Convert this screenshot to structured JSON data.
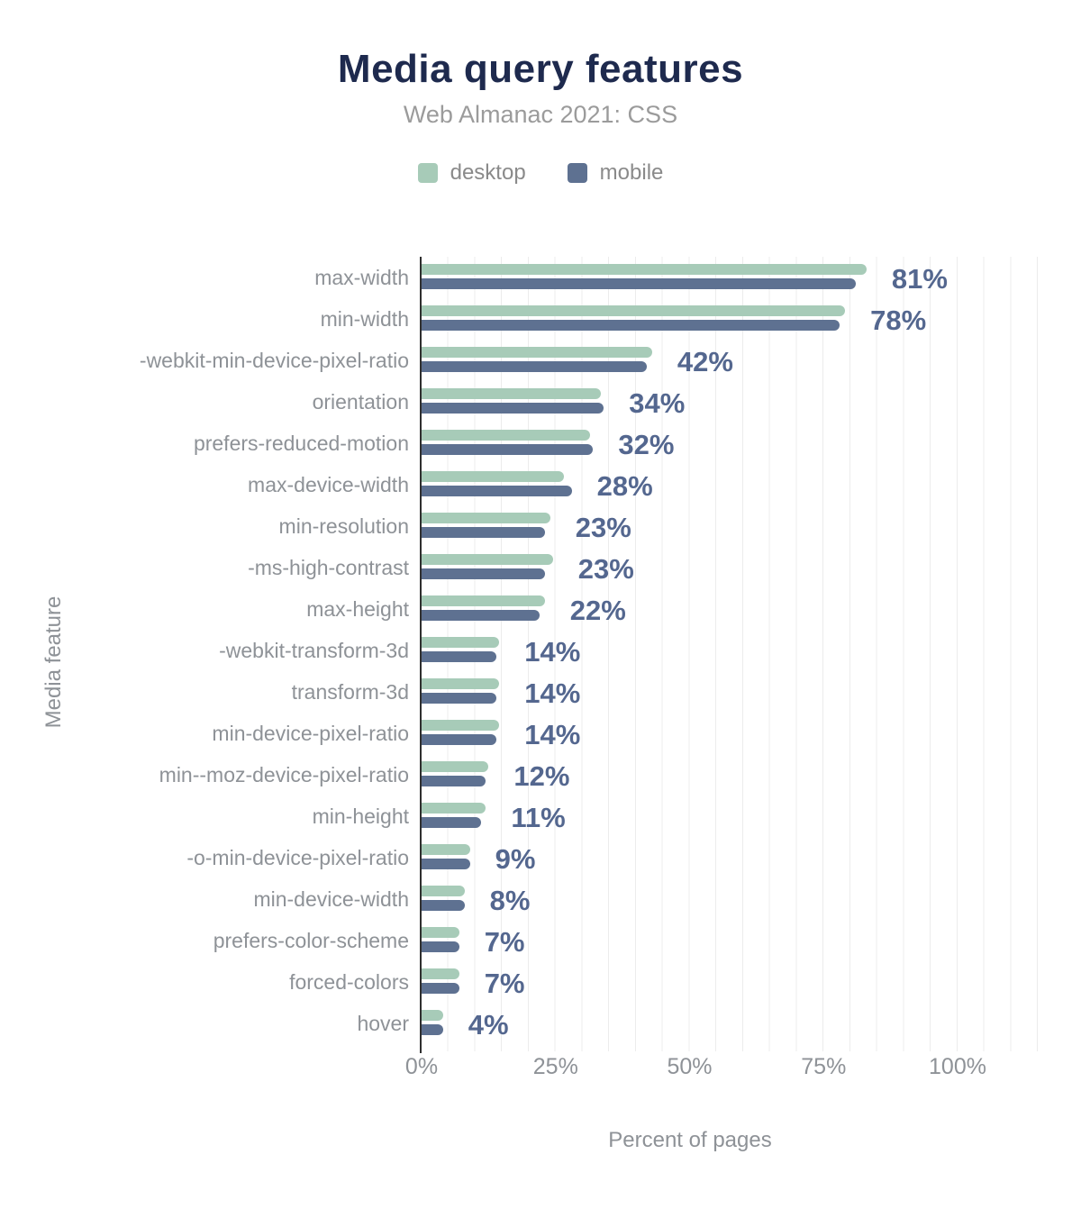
{
  "header": {
    "title": "Media query features",
    "subtitle": "Web Almanac 2021: CSS"
  },
  "legend": {
    "items": [
      {
        "label": "desktop",
        "color": "#a7cbb8"
      },
      {
        "label": "mobile",
        "color": "#5e7191"
      }
    ]
  },
  "colors": {
    "title": "#1e2a4e",
    "subtitle_gray": "#9b9b9b",
    "axis_text_gray": "#8e9297",
    "value_label": "#54678f",
    "axis_line": "#2f2f2f",
    "gridline": "#ececec"
  },
  "chart_data": {
    "type": "bar",
    "orientation": "horizontal",
    "title": "Media query features",
    "subtitle": "Web Almanac 2021: CSS",
    "xlabel": "Percent of pages",
    "ylabel": "Media feature",
    "xlim": [
      0,
      100
    ],
    "xticks": [
      "0%",
      "25%",
      "50%",
      "75%",
      "100%"
    ],
    "grid": "vertical gridlines every 5%",
    "legend_position": "top",
    "categories": [
      "max-width",
      "min-width",
      "-webkit-min-device-pixel-ratio",
      "orientation",
      "prefers-reduced-motion",
      "max-device-width",
      "min-resolution",
      "-ms-high-contrast",
      "max-height",
      "-webkit-transform-3d",
      "transform-3d",
      "min-device-pixel-ratio",
      "min--moz-device-pixel-ratio",
      "min-height",
      "-o-min-device-pixel-ratio",
      "min-device-width",
      "prefers-color-scheme",
      "forced-colors",
      "hover"
    ],
    "series": [
      {
        "name": "desktop",
        "color": "#a7cbb8",
        "values": [
          83,
          79,
          43,
          33.5,
          31.5,
          26.5,
          24,
          24.5,
          23,
          14.5,
          14.5,
          14.5,
          12.5,
          12,
          9,
          8,
          7,
          7,
          4
        ]
      },
      {
        "name": "mobile",
        "color": "#5e7191",
        "values": [
          81,
          78,
          42,
          34,
          32,
          28,
          23,
          23,
          22,
          14,
          14,
          14,
          12,
          11,
          9,
          8,
          7,
          7,
          4
        ]
      }
    ],
    "bar_labels": [
      "81%",
      "78%",
      "42%",
      "34%",
      "32%",
      "28%",
      "23%",
      "23%",
      "22%",
      "14%",
      "14%",
      "14%",
      "12%",
      "11%",
      "9%",
      "8%",
      "7%",
      "7%",
      "4%"
    ]
  }
}
